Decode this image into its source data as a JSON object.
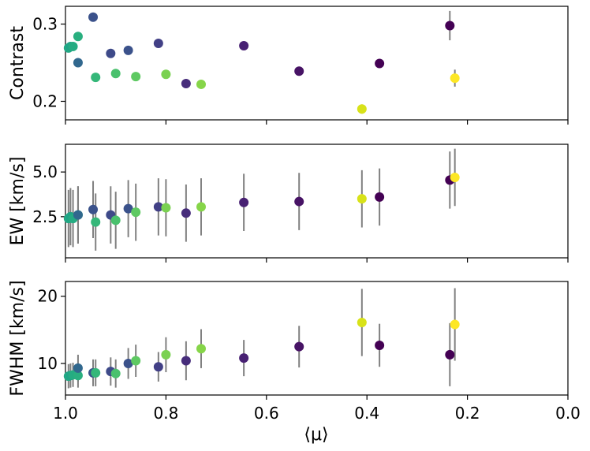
{
  "chart_data": [
    {
      "type": "scatter",
      "panel": "contrast",
      "ylabel": "Contrast",
      "xlim": [
        1.0,
        0.0
      ],
      "ylim": [
        0.176,
        0.323
      ],
      "yticks": [
        0.2,
        0.3
      ],
      "ytick_labels": [
        "0.2",
        "0.3"
      ],
      "x": [
        0.994,
        0.99,
        0.985,
        0.975,
        0.975,
        0.945,
        0.94,
        0.91,
        0.9,
        0.875,
        0.86,
        0.815,
        0.8,
        0.76,
        0.73,
        0.645,
        0.535,
        0.41,
        0.375,
        0.235,
        0.225
      ],
      "y": [
        0.269,
        0.271,
        0.271,
        0.284,
        0.25,
        0.309,
        0.231,
        0.262,
        0.236,
        0.266,
        0.232,
        0.275,
        0.235,
        0.223,
        0.222,
        0.272,
        0.239,
        0.19,
        0.249,
        0.298,
        0.23
      ],
      "yerr": [
        0.002,
        0.002,
        0.002,
        0.002,
        0.002,
        0.002,
        0.002,
        0.002,
        0.002,
        0.002,
        0.002,
        0.002,
        0.002,
        0.004,
        0.002,
        0.003,
        0.002,
        0.006,
        0.002,
        0.019,
        0.011
      ],
      "colors": [
        "#22a884",
        "#20a486",
        "#25ac82",
        "#29af7f",
        "#31688e",
        "#3b528b",
        "#35b779",
        "#3e4a89",
        "#4ac16d",
        "#3b528b",
        "#5ec962",
        "#424086",
        "#7ad151",
        "#472d7b",
        "#86d549",
        "#482173",
        "#471365",
        "#d8e219",
        "#440154",
        "#440154",
        "#fde725"
      ]
    },
    {
      "type": "scatter",
      "panel": "ew",
      "ylabel": "EW [km/s]",
      "xlim": [
        1.0,
        0.0
      ],
      "ylim": [
        0.2,
        6.55
      ],
      "yticks": [
        2.5,
        5.0
      ],
      "ytick_labels": [
        "2.5",
        "5.0"
      ],
      "x": [
        0.994,
        0.99,
        0.985,
        0.975,
        0.975,
        0.945,
        0.94,
        0.91,
        0.9,
        0.875,
        0.86,
        0.815,
        0.8,
        0.76,
        0.73,
        0.645,
        0.535,
        0.41,
        0.375,
        0.235,
        0.225
      ],
      "y": [
        2.4,
        2.5,
        2.4,
        2.6,
        2.6,
        2.9,
        2.2,
        2.6,
        2.3,
        2.95,
        2.75,
        3.05,
        3.0,
        2.7,
        3.05,
        3.3,
        3.35,
        3.5,
        3.6,
        4.55,
        4.7
      ],
      "yerr": [
        1.6,
        1.6,
        1.6,
        1.6,
        1.6,
        1.6,
        1.6,
        1.6,
        1.6,
        1.6,
        1.6,
        1.6,
        1.6,
        1.6,
        1.6,
        1.6,
        1.6,
        1.6,
        1.6,
        1.6,
        1.6
      ],
      "colors": [
        "#22a884",
        "#20a486",
        "#25ac82",
        "#29af7f",
        "#31688e",
        "#3b528b",
        "#35b779",
        "#3e4a89",
        "#4ac16d",
        "#3b528b",
        "#5ec962",
        "#424086",
        "#7ad151",
        "#472d7b",
        "#86d549",
        "#482173",
        "#471365",
        "#d8e219",
        "#440154",
        "#440154",
        "#fde725"
      ]
    },
    {
      "type": "scatter",
      "panel": "fwhm",
      "ylabel": "FWHM [km/s]",
      "xlabel": "⟨μ⟩",
      "xlim": [
        1.0,
        0.0
      ],
      "ylim": [
        5.3,
        22.2
      ],
      "yticks": [
        10,
        20
      ],
      "ytick_labels": [
        "10",
        "20"
      ],
      "xticks": [
        1.0,
        0.8,
        0.6,
        0.4,
        0.2,
        0.0
      ],
      "xtick_labels": [
        "1.0",
        "0.8",
        "0.6",
        "0.4",
        "0.2",
        "0.0"
      ],
      "x": [
        0.994,
        0.99,
        0.985,
        0.975,
        0.975,
        0.945,
        0.94,
        0.91,
        0.9,
        0.875,
        0.86,
        0.815,
        0.8,
        0.76,
        0.73,
        0.645,
        0.535,
        0.41,
        0.375,
        0.235,
        0.225
      ],
      "y": [
        8.1,
        8.2,
        8.3,
        8.2,
        9.3,
        8.6,
        8.6,
        8.8,
        8.5,
        10.0,
        10.4,
        9.5,
        11.3,
        10.4,
        12.2,
        10.8,
        12.5,
        16.1,
        12.7,
        11.3,
        15.8
      ],
      "yerr": [
        1.8,
        1.8,
        1.8,
        1.8,
        2.0,
        2.0,
        2.0,
        2.1,
        2.1,
        2.3,
        2.4,
        2.2,
        2.6,
        2.9,
        2.9,
        2.7,
        3.1,
        5.0,
        3.2,
        4.7,
        5.4
      ],
      "colors": [
        "#22a884",
        "#20a486",
        "#25ac82",
        "#29af7f",
        "#31688e",
        "#3b528b",
        "#35b779",
        "#3e4a89",
        "#4ac16d",
        "#3b528b",
        "#5ec962",
        "#424086",
        "#7ad151",
        "#472d7b",
        "#86d549",
        "#482173",
        "#471365",
        "#d8e219",
        "#440154",
        "#440154",
        "#fde725"
      ]
    }
  ]
}
